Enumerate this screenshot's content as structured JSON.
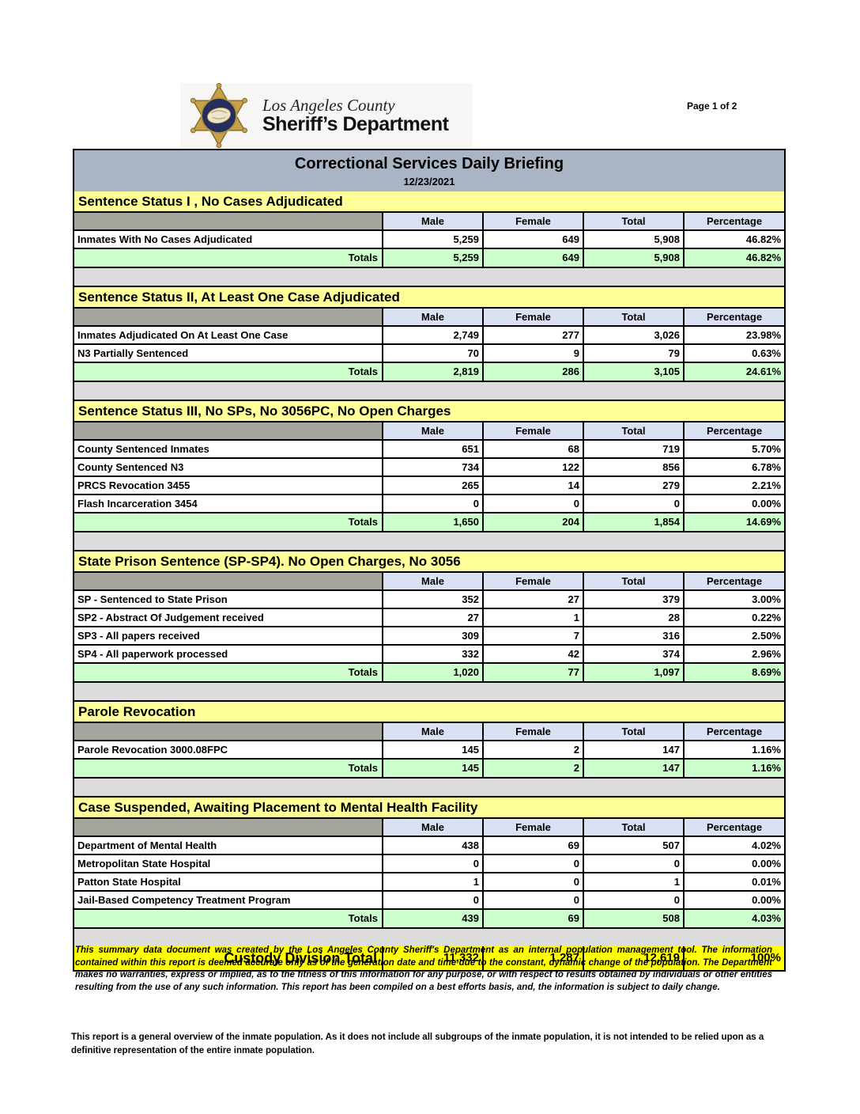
{
  "header": {
    "org_line1": "Los Angeles County",
    "org_line2": "Sheriff’s Department",
    "page_label": "Page 1 of 2",
    "title": "Correctional Services Daily Briefing",
    "date": "12/23/2021"
  },
  "columns": [
    "Male",
    "Female",
    "Total",
    "Percentage"
  ],
  "totals_label": "Totals",
  "sections": [
    {
      "title": "Sentence Status I , No Cases Adjudicated",
      "rows": [
        {
          "label": "Inmates With No Cases Adjudicated",
          "male": "5,259",
          "female": "649",
          "total": "5,908",
          "percentage": "46.82%"
        }
      ],
      "totals": {
        "male": "5,259",
        "female": "649",
        "total": "5,908",
        "percentage": "46.82%"
      }
    },
    {
      "title": "Sentence Status II, At Least One Case Adjudicated",
      "rows": [
        {
          "label": "Inmates Adjudicated On At Least One Case",
          "male": "2,749",
          "female": "277",
          "total": "3,026",
          "percentage": "23.98%"
        },
        {
          "label": "N3 Partially Sentenced",
          "male": "70",
          "female": "9",
          "total": "79",
          "percentage": "0.63%"
        }
      ],
      "totals": {
        "male": "2,819",
        "female": "286",
        "total": "3,105",
        "percentage": "24.61%"
      }
    },
    {
      "title": "Sentence Status III, No SPs, No 3056PC, No Open Charges",
      "rows": [
        {
          "label": "County Sentenced Inmates",
          "male": "651",
          "female": "68",
          "total": "719",
          "percentage": "5.70%"
        },
        {
          "label": "County Sentenced N3",
          "male": "734",
          "female": "122",
          "total": "856",
          "percentage": "6.78%"
        },
        {
          "label": "PRCS Revocation 3455",
          "male": "265",
          "female": "14",
          "total": "279",
          "percentage": "2.21%"
        },
        {
          "label": "Flash Incarceration 3454",
          "male": "0",
          "female": "0",
          "total": "0",
          "percentage": "0.00%"
        }
      ],
      "totals": {
        "male": "1,650",
        "female": "204",
        "total": "1,854",
        "percentage": "14.69%"
      }
    },
    {
      "title": "State Prison Sentence (SP-SP4). No Open Charges, No 3056",
      "rows": [
        {
          "label": "SP - Sentenced to State Prison",
          "male": "352",
          "female": "27",
          "total": "379",
          "percentage": "3.00%"
        },
        {
          "label": "SP2 - Abstract Of Judgement received",
          "male": "27",
          "female": "1",
          "total": "28",
          "percentage": "0.22%"
        },
        {
          "label": "SP3 - All papers received",
          "male": "309",
          "female": "7",
          "total": "316",
          "percentage": "2.50%"
        },
        {
          "label": "SP4 - All paperwork processed",
          "male": "332",
          "female": "42",
          "total": "374",
          "percentage": "2.96%"
        }
      ],
      "totals": {
        "male": "1,020",
        "female": "77",
        "total": "1,097",
        "percentage": "8.69%"
      }
    },
    {
      "title": "Parole Revocation",
      "rows": [
        {
          "label": "Parole Revocation 3000.08FPC",
          "male": "145",
          "female": "2",
          "total": "147",
          "percentage": "1.16%"
        }
      ],
      "totals": {
        "male": "145",
        "female": "2",
        "total": "147",
        "percentage": "1.16%"
      }
    },
    {
      "title": "Case Suspended, Awaiting Placement to Mental Health Facility",
      "rows": [
        {
          "label": "Department of Mental Health",
          "male": "438",
          "female": "69",
          "total": "507",
          "percentage": "4.02%"
        },
        {
          "label": "Metropolitan State Hospital",
          "male": "0",
          "female": "0",
          "total": "0",
          "percentage": "0.00%"
        },
        {
          "label": "Patton State Hospital",
          "male": "1",
          "female": "0",
          "total": "1",
          "percentage": "0.01%"
        },
        {
          "label": "Jail-Based Competency Treatment Program",
          "male": "0",
          "female": "0",
          "total": "0",
          "percentage": "0.00%"
        }
      ],
      "totals": {
        "male": "439",
        "female": "69",
        "total": "508",
        "percentage": "4.03%"
      }
    }
  ],
  "grand_total": {
    "label": "Custody Division Total",
    "male": "11,332",
    "female": "1,287",
    "total": "12,619",
    "percentage": "100%"
  },
  "footer": {
    "disclaimer": "This summary data document was created by the Los Angeles County Sheriff's Department as an internal population management tool.  The information contained within this report is deemed accurate only as of the generation date and time due to the constant, dynamic change of the population.  The Department makes no warranties, express or implied, as to the fitness of this information for any purpose, or with respect to results obtained by individuals or other entities resulting from the use of any such information.  This report has been compiled on a best efforts basis, and, the information is subject to daily change.",
    "overview_note": "This report is a general overview of the inmate population.  As it does not include all subgroups of the inmate population, it is not intended to be relied upon as a definitive representation of the entire inmate population."
  },
  "colors": {
    "title_bar": "#a9b5c4",
    "section_header": "#ffff99",
    "column_header": "#d9e1f2",
    "blank_header_cell": "#a5a59d",
    "totals_row": "#ccffcc",
    "grand_total_row": "#ffff00",
    "spacer_row": "#dcdcdc",
    "badge_gold": "#c7a24a",
    "badge_navy": "#252e5e"
  }
}
